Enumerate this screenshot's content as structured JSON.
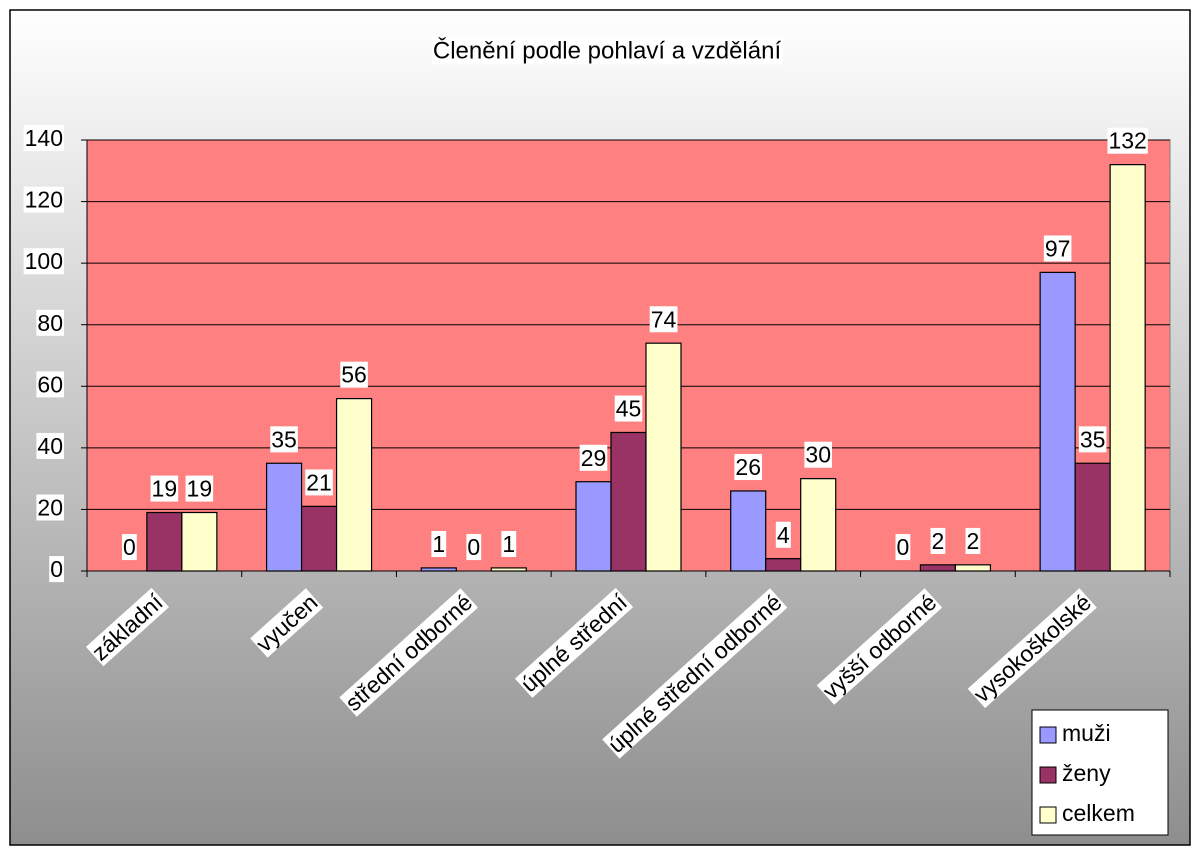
{
  "chart_data": {
    "type": "bar",
    "title": "Členění podle pohlaví a vzdělání",
    "categories": [
      "základní",
      "vyučen",
      "střední odborné",
      "úplné střední",
      "úplné střední odborné",
      "vyšší odborné",
      "vysokoškolské"
    ],
    "series": [
      {
        "name": "muži",
        "color": "#9999ff",
        "values": [
          0,
          35,
          1,
          29,
          26,
          0,
          97
        ]
      },
      {
        "name": "ženy",
        "color": "#993366",
        "values": [
          19,
          21,
          0,
          45,
          4,
          2,
          35
        ]
      },
      {
        "name": "celkem",
        "color": "#ffffcc",
        "values": [
          19,
          56,
          1,
          74,
          30,
          2,
          132
        ]
      }
    ],
    "ylim": [
      0,
      140
    ],
    "yticks": [
      0,
      20,
      40,
      60,
      80,
      100,
      120,
      140
    ],
    "grid": true,
    "legend": "bottom-right",
    "plot_color": "#ff8080"
  }
}
